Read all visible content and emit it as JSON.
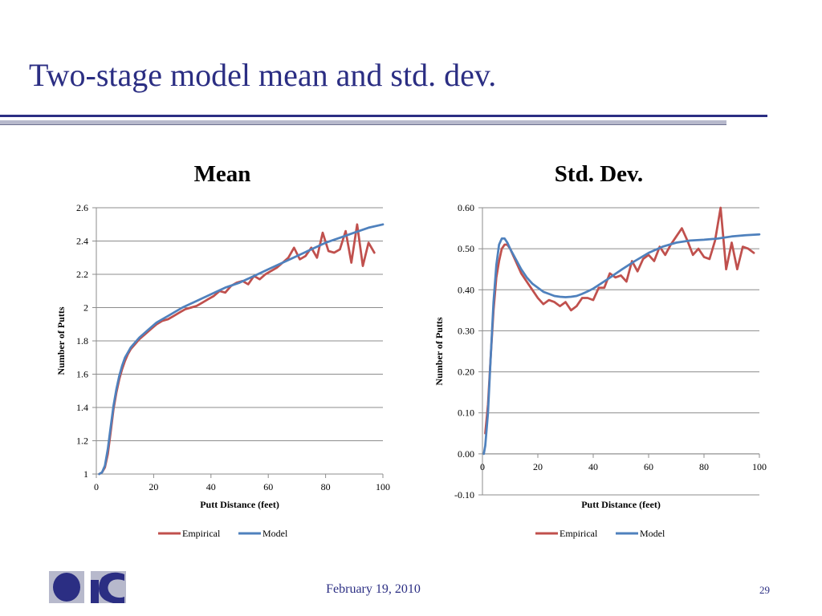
{
  "slide": {
    "title": "Two-stage model mean and std. dev.",
    "footer_date": "February 19, 2010",
    "page_number": "29"
  },
  "colors": {
    "title": "#2b2e83",
    "empirical": "#c0504d",
    "model": "#4f81bd"
  },
  "chart_data": [
    {
      "type": "line",
      "title": "Mean",
      "xlabel": "Putt Distance (feet)",
      "ylabel": "Number of Putts",
      "xlim": [
        0,
        100
      ],
      "ylim": [
        1,
        2.6
      ],
      "x_ticks": [
        "0",
        "20",
        "40",
        "60",
        "80",
        "100"
      ],
      "y_ticks": [
        "1",
        "1.2",
        "1.4",
        "1.6",
        "1.8",
        "2",
        "2.2",
        "2.4",
        "2.6"
      ],
      "grid": true,
      "legend": "bottom",
      "series": [
        {
          "name": "Empirical",
          "x": [
            1,
            2,
            3,
            4,
            5,
            6,
            7,
            8,
            9,
            10,
            11,
            12,
            13,
            15,
            17,
            19,
            21,
            23,
            25,
            27,
            29,
            31,
            33,
            35,
            37,
            39,
            41,
            43,
            45,
            47,
            49,
            51,
            53,
            55,
            57,
            59,
            61,
            63,
            65,
            67,
            69,
            71,
            73,
            75,
            77,
            79,
            81,
            83,
            85,
            87,
            89,
            91,
            93,
            95,
            97
          ],
          "y": [
            1.0,
            1.01,
            1.04,
            1.12,
            1.25,
            1.39,
            1.49,
            1.57,
            1.63,
            1.68,
            1.72,
            1.75,
            1.77,
            1.81,
            1.84,
            1.87,
            1.9,
            1.92,
            1.93,
            1.95,
            1.97,
            1.99,
            2.0,
            2.01,
            2.03,
            2.05,
            2.07,
            2.1,
            2.09,
            2.13,
            2.15,
            2.16,
            2.14,
            2.19,
            2.17,
            2.2,
            2.22,
            2.24,
            2.27,
            2.3,
            2.36,
            2.29,
            2.31,
            2.36,
            2.3,
            2.45,
            2.34,
            2.33,
            2.35,
            2.46,
            2.27,
            2.5,
            2.25,
            2.39,
            2.33
          ]
        },
        {
          "name": "Model",
          "x": [
            1,
            2,
            3,
            4,
            5,
            6,
            7,
            8,
            9,
            10,
            11,
            12,
            13,
            15,
            17,
            19,
            21,
            23,
            25,
            30,
            35,
            40,
            45,
            50,
            55,
            60,
            65,
            70,
            75,
            80,
            85,
            90,
            95,
            100
          ],
          "y": [
            1.0,
            1.01,
            1.05,
            1.15,
            1.28,
            1.41,
            1.51,
            1.59,
            1.65,
            1.7,
            1.73,
            1.76,
            1.78,
            1.82,
            1.85,
            1.88,
            1.91,
            1.93,
            1.95,
            2.0,
            2.04,
            2.08,
            2.12,
            2.15,
            2.19,
            2.23,
            2.27,
            2.31,
            2.35,
            2.39,
            2.42,
            2.45,
            2.48,
            2.5
          ]
        }
      ]
    },
    {
      "type": "line",
      "title": "Std. Dev.",
      "xlabel": "Putt Distance (feet)",
      "ylabel": "Number of Putts",
      "xlim": [
        0,
        100
      ],
      "ylim": [
        -0.1,
        0.6
      ],
      "x_ticks": [
        "0",
        "20",
        "40",
        "60",
        "80",
        "100"
      ],
      "y_ticks": [
        "-0.10",
        "0.00",
        "0.10",
        "0.20",
        "0.30",
        "0.40",
        "0.50",
        "0.60"
      ],
      "grid": true,
      "legend": "bottom",
      "series": [
        {
          "name": "Empirical",
          "x": [
            1,
            2,
            3,
            4,
            5,
            6,
            7,
            8,
            9,
            10,
            12,
            14,
            16,
            18,
            20,
            22,
            24,
            26,
            28,
            30,
            32,
            34,
            36,
            38,
            40,
            42,
            44,
            46,
            48,
            50,
            52,
            54,
            56,
            58,
            60,
            62,
            64,
            66,
            68,
            70,
            72,
            74,
            76,
            78,
            80,
            82,
            84,
            86,
            88,
            90,
            92,
            94,
            96,
            98
          ],
          "y": [
            0.05,
            0.12,
            0.24,
            0.35,
            0.43,
            0.47,
            0.5,
            0.51,
            0.51,
            0.5,
            0.47,
            0.44,
            0.42,
            0.4,
            0.38,
            0.365,
            0.375,
            0.37,
            0.36,
            0.37,
            0.35,
            0.36,
            0.38,
            0.38,
            0.375,
            0.405,
            0.405,
            0.44,
            0.43,
            0.435,
            0.42,
            0.47,
            0.445,
            0.475,
            0.485,
            0.47,
            0.505,
            0.485,
            0.51,
            0.53,
            0.55,
            0.52,
            0.485,
            0.5,
            0.48,
            0.475,
            0.52,
            0.6,
            0.45,
            0.515,
            0.45,
            0.505,
            0.5,
            0.49
          ]
        },
        {
          "name": "Model",
          "x": [
            0.5,
            1,
            2,
            3,
            4,
            5,
            6,
            7,
            8,
            9,
            10,
            12,
            14,
            16,
            18,
            20,
            22,
            24,
            26,
            28,
            30,
            32,
            34,
            36,
            38,
            40,
            45,
            50,
            55,
            60,
            65,
            70,
            75,
            80,
            85,
            90,
            95,
            100
          ],
          "y": [
            0.0,
            0.02,
            0.1,
            0.24,
            0.37,
            0.46,
            0.51,
            0.525,
            0.525,
            0.515,
            0.5,
            0.475,
            0.45,
            0.43,
            0.415,
            0.405,
            0.395,
            0.39,
            0.385,
            0.383,
            0.382,
            0.383,
            0.385,
            0.39,
            0.396,
            0.403,
            0.425,
            0.448,
            0.47,
            0.49,
            0.505,
            0.515,
            0.52,
            0.522,
            0.525,
            0.53,
            0.533,
            0.535
          ]
        }
      ]
    }
  ]
}
